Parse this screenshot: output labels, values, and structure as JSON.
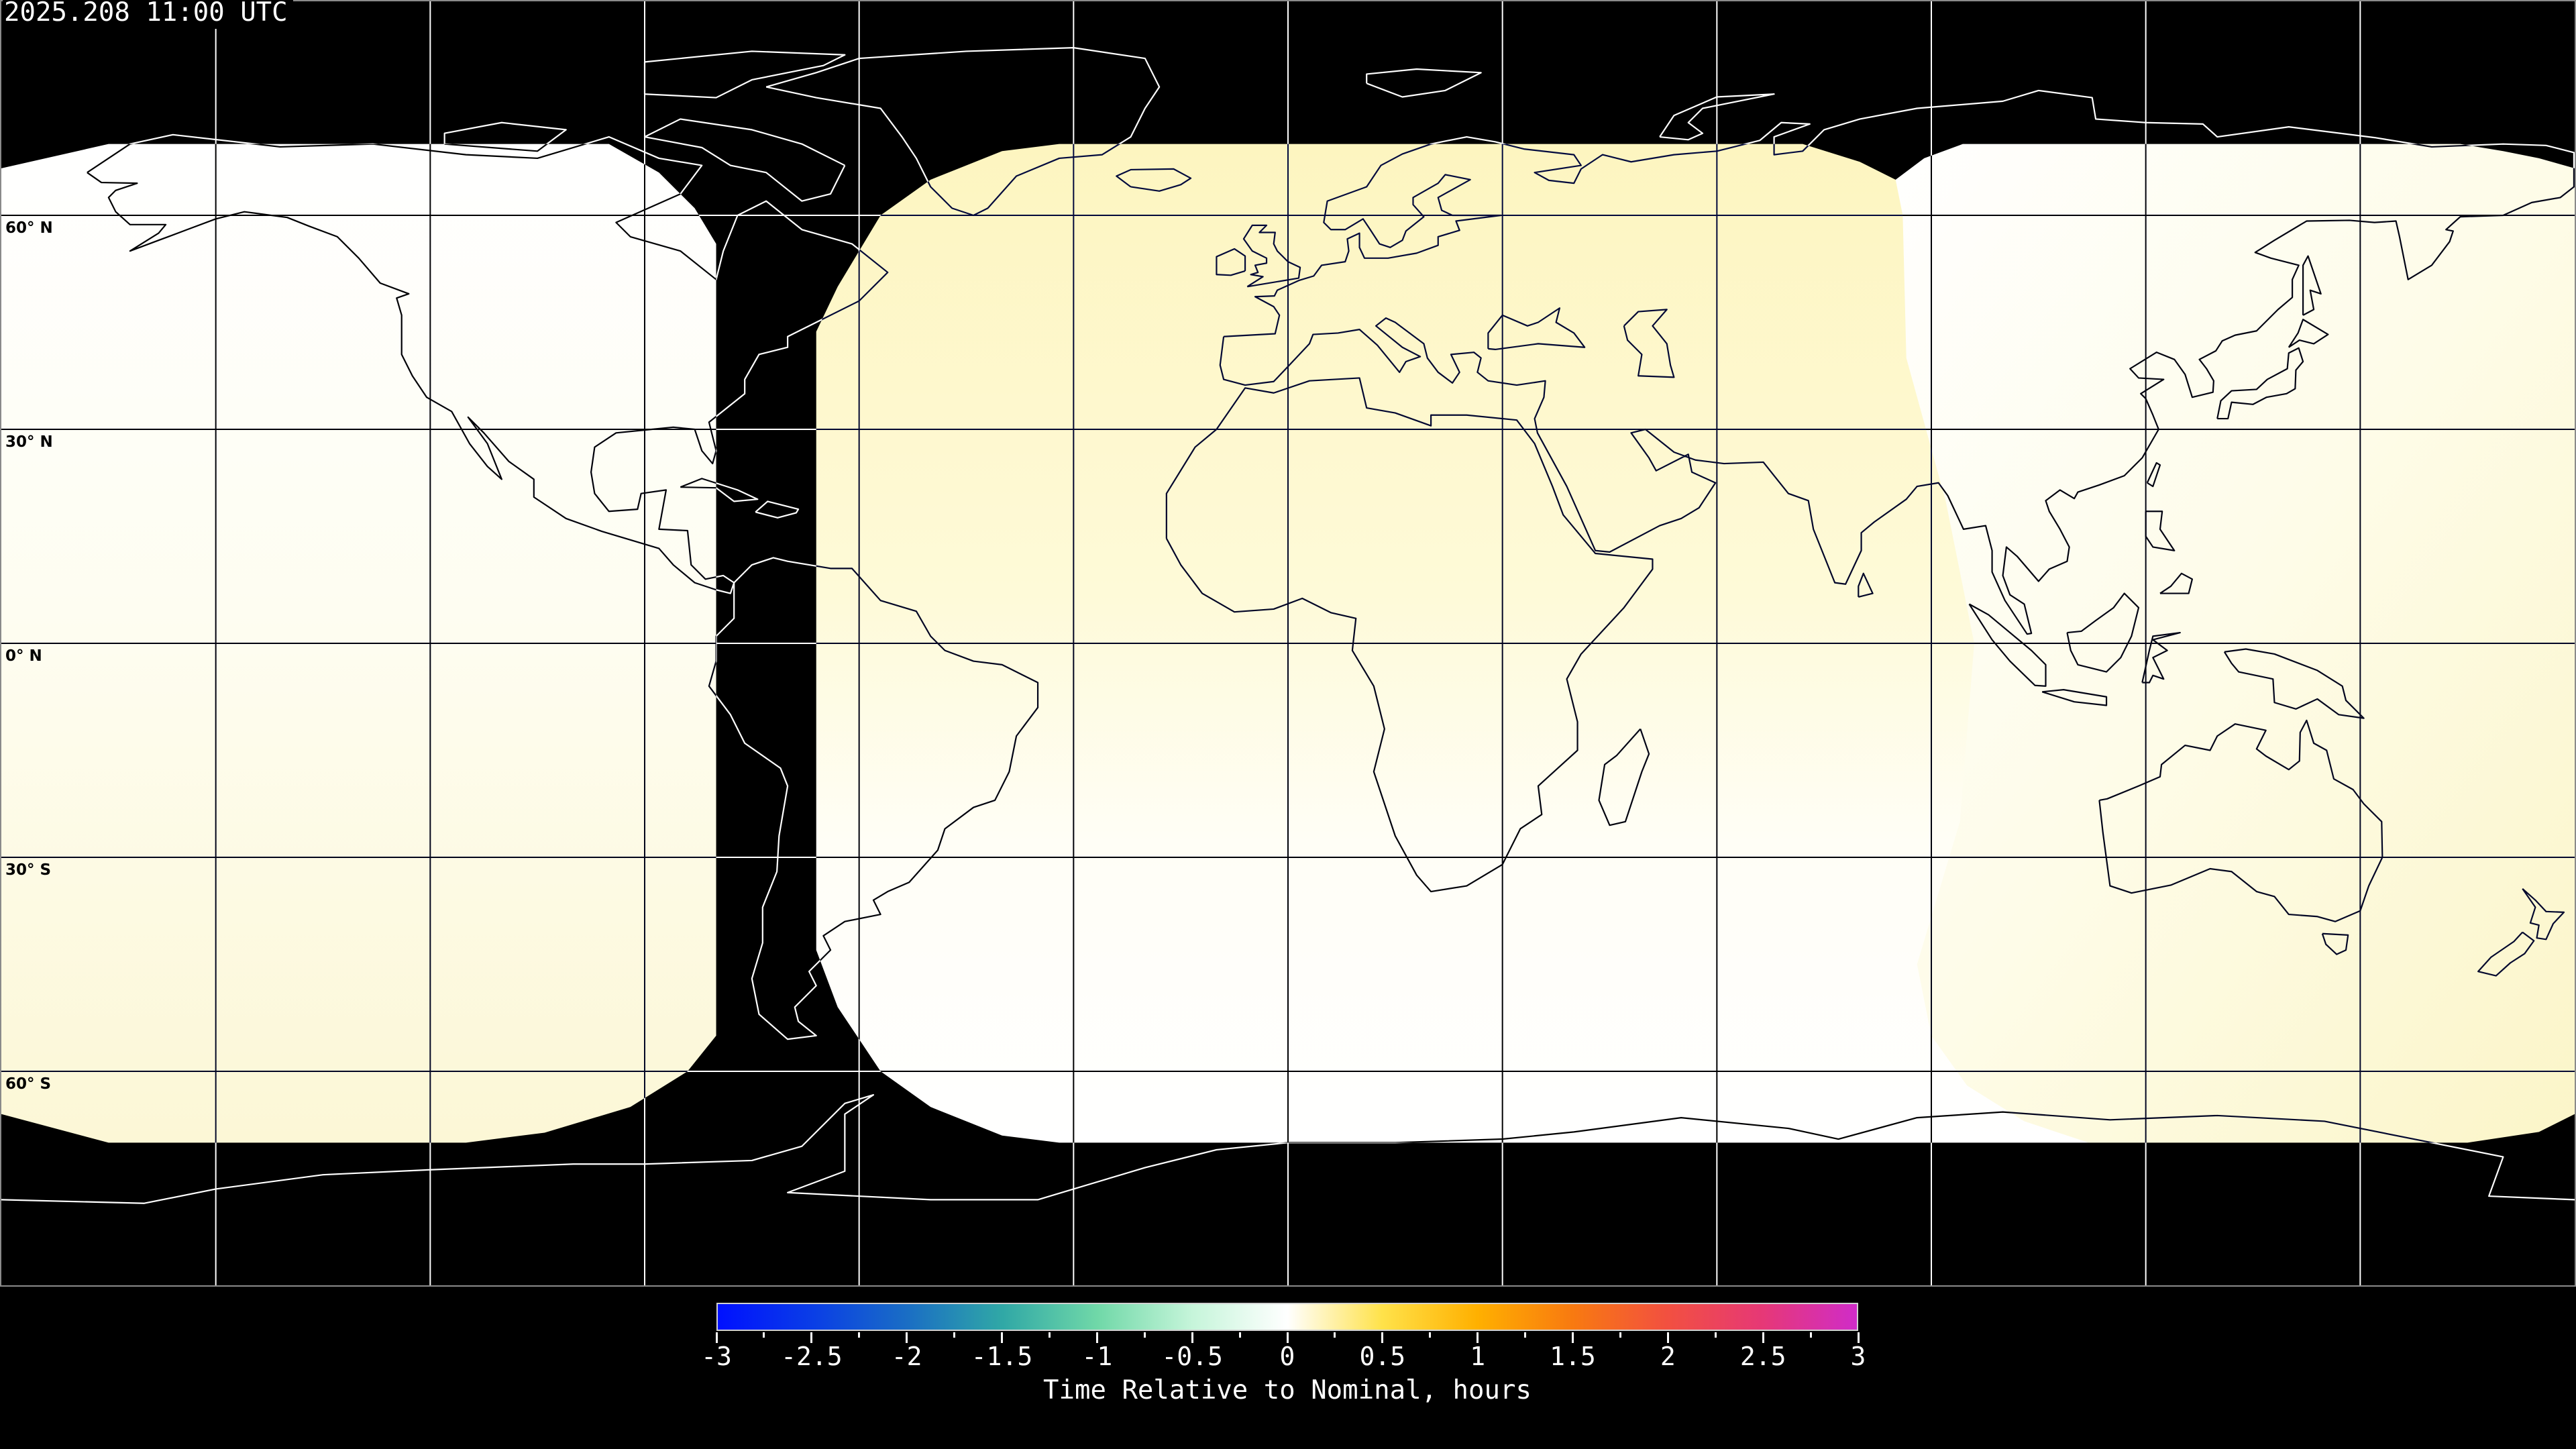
{
  "title": "2025.208 11:00 UTC",
  "map": {
    "projection": "equirectangular",
    "background_color": "#000000",
    "lon_grid_step_deg": 30,
    "lat_grid_step_deg": 30,
    "lat_labels": [
      "60° N",
      "30° N",
      "0° N",
      "30° S",
      "60° S"
    ],
    "lat_label_values": [
      60,
      30,
      0,
      -30,
      -60
    ]
  },
  "colorbar": {
    "min": -3,
    "max": 3,
    "tick_labels": [
      "-3",
      "-2.5",
      "-2",
      "-1.5",
      "-1",
      "-0.5",
      "0",
      "0.5",
      "1",
      "1.5",
      "2",
      "2.5",
      "3"
    ],
    "label": "Time Relative to Nominal, hours",
    "colors": [
      {
        "value": -3,
        "color": "#0010ff"
      },
      {
        "value": -2.5,
        "color": "#0a3ee6"
      },
      {
        "value": -2,
        "color": "#1a6ec4"
      },
      {
        "value": -1.5,
        "color": "#30a8a6"
      },
      {
        "value": -1,
        "color": "#70d8a8"
      },
      {
        "value": -0.5,
        "color": "#c6f5da"
      },
      {
        "value": 0,
        "color": "#ffffff"
      },
      {
        "value": 0.5,
        "color": "#ffe24a"
      },
      {
        "value": 1,
        "color": "#ffb000"
      },
      {
        "value": 1.5,
        "color": "#f87a10"
      },
      {
        "value": 2,
        "color": "#f25040"
      },
      {
        "value": 2.5,
        "color": "#e63876"
      },
      {
        "value": 3,
        "color": "#d02cc8"
      }
    ]
  }
}
